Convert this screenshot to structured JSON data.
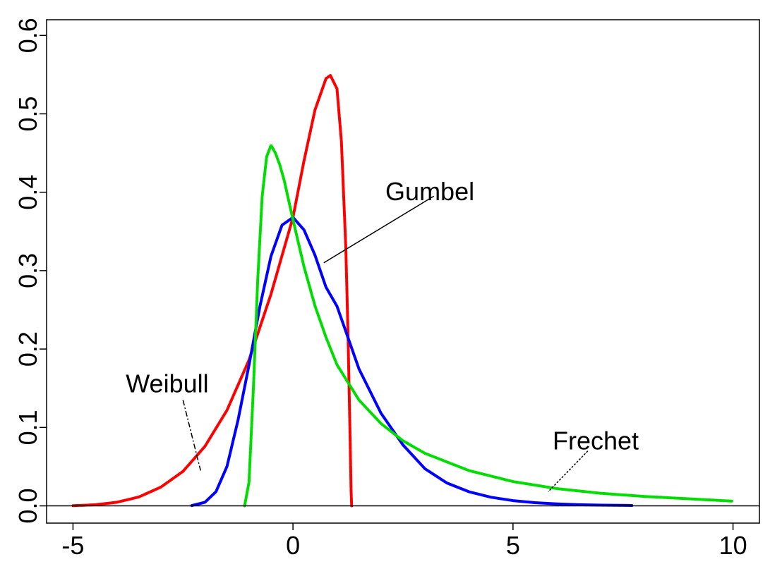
{
  "chart_data": {
    "type": "line",
    "title": "",
    "xlabel": "",
    "ylabel": "",
    "xlim": [
      -5.6,
      10.6
    ],
    "ylim": [
      -0.022,
      0.62
    ],
    "x_ticks": [
      -5,
      0,
      5,
      10
    ],
    "x_tick_labels": [
      "-5",
      "0",
      "5",
      "10"
    ],
    "y_ticks": [
      0.0,
      0.1,
      0.2,
      0.3,
      0.4,
      0.5,
      0.6
    ],
    "y_tick_labels": [
      "0.0",
      "0.1",
      "0.2",
      "0.3",
      "0.4",
      "0.5",
      "0.6"
    ],
    "grid": false,
    "baseline_y": 0,
    "series": [
      {
        "name": "Weibull",
        "color": "#ff0000",
        "style": "dashed",
        "x": [
          -5.0,
          -4.5,
          -4.0,
          -3.5,
          -3.0,
          -2.5,
          -2.0,
          -1.5,
          -1.0,
          -0.5,
          0.0,
          0.25,
          0.5,
          0.75,
          0.85,
          1.0,
          1.1,
          1.2,
          1.25,
          1.3,
          1.32,
          1.333
        ],
        "y": [
          0.0002,
          0.0014,
          0.0046,
          0.0114,
          0.024,
          0.044,
          0.076,
          0.122,
          0.186,
          0.27,
          0.368,
          0.44,
          0.505,
          0.545,
          0.549,
          0.532,
          0.465,
          0.33,
          0.22,
          0.08,
          0.02,
          0.0
        ]
      },
      {
        "name": "Gumbel",
        "color": "#0000ff",
        "style": "solid",
        "x": [
          -2.3,
          -2.0,
          -1.75,
          -1.5,
          -1.25,
          -1.0,
          -0.75,
          -0.5,
          -0.25,
          0.0,
          0.25,
          0.5,
          0.75,
          1.0,
          1.5,
          2.0,
          2.5,
          3.0,
          3.5,
          4.0,
          4.5,
          5.0,
          5.5,
          6.0,
          6.5,
          7.0,
          7.7
        ],
        "y": [
          0.0004,
          0.0046,
          0.0181,
          0.0503,
          0.1091,
          0.1794,
          0.2548,
          0.3184,
          0.358,
          0.3679,
          0.352,
          0.3197,
          0.2789,
          0.2546,
          0.1746,
          0.1182,
          0.0777,
          0.0473,
          0.0291,
          0.018,
          0.011,
          0.0067,
          0.0041,
          0.0025,
          0.0015,
          0.0009,
          0.0005
        ]
      },
      {
        "name": "Frechet",
        "color": "#00dd00",
        "style": "dotted",
        "x": [
          -1.1,
          -1.0,
          -0.9,
          -0.8,
          -0.7,
          -0.6,
          -0.5,
          -0.4,
          -0.3,
          -0.2,
          -0.1,
          0.0,
          0.25,
          0.5,
          0.75,
          1.0,
          1.5,
          2.0,
          2.5,
          3.0,
          4.0,
          5.0,
          6.0,
          7.0,
          8.0,
          9.0,
          10.0
        ],
        "y": [
          0.0,
          0.03,
          0.15,
          0.29,
          0.395,
          0.445,
          0.46,
          0.45,
          0.435,
          0.415,
          0.39,
          0.365,
          0.305,
          0.255,
          0.215,
          0.18,
          0.135,
          0.105,
          0.083,
          0.067,
          0.045,
          0.031,
          0.022,
          0.016,
          0.012,
          0.009,
          0.006
        ]
      }
    ],
    "annotations": [
      {
        "text": "Weibull",
        "label_pos": [
          -3.8,
          0.145
        ],
        "pointer": [
          [
            -2.5,
            0.135
          ],
          [
            -2.1,
            0.045
          ]
        ],
        "pointer_style": "dashdot"
      },
      {
        "text": "Gumbel",
        "label_pos": [
          2.1,
          0.39
        ],
        "pointer": [
          [
            3.2,
            0.395
          ],
          [
            0.7,
            0.31
          ]
        ],
        "pointer_style": "solid"
      },
      {
        "text": "Frechet",
        "label_pos": [
          5.9,
          0.072
        ],
        "pointer": [
          [
            6.7,
            0.07
          ],
          [
            5.8,
            0.018
          ]
        ],
        "pointer_style": "dotted"
      }
    ]
  }
}
